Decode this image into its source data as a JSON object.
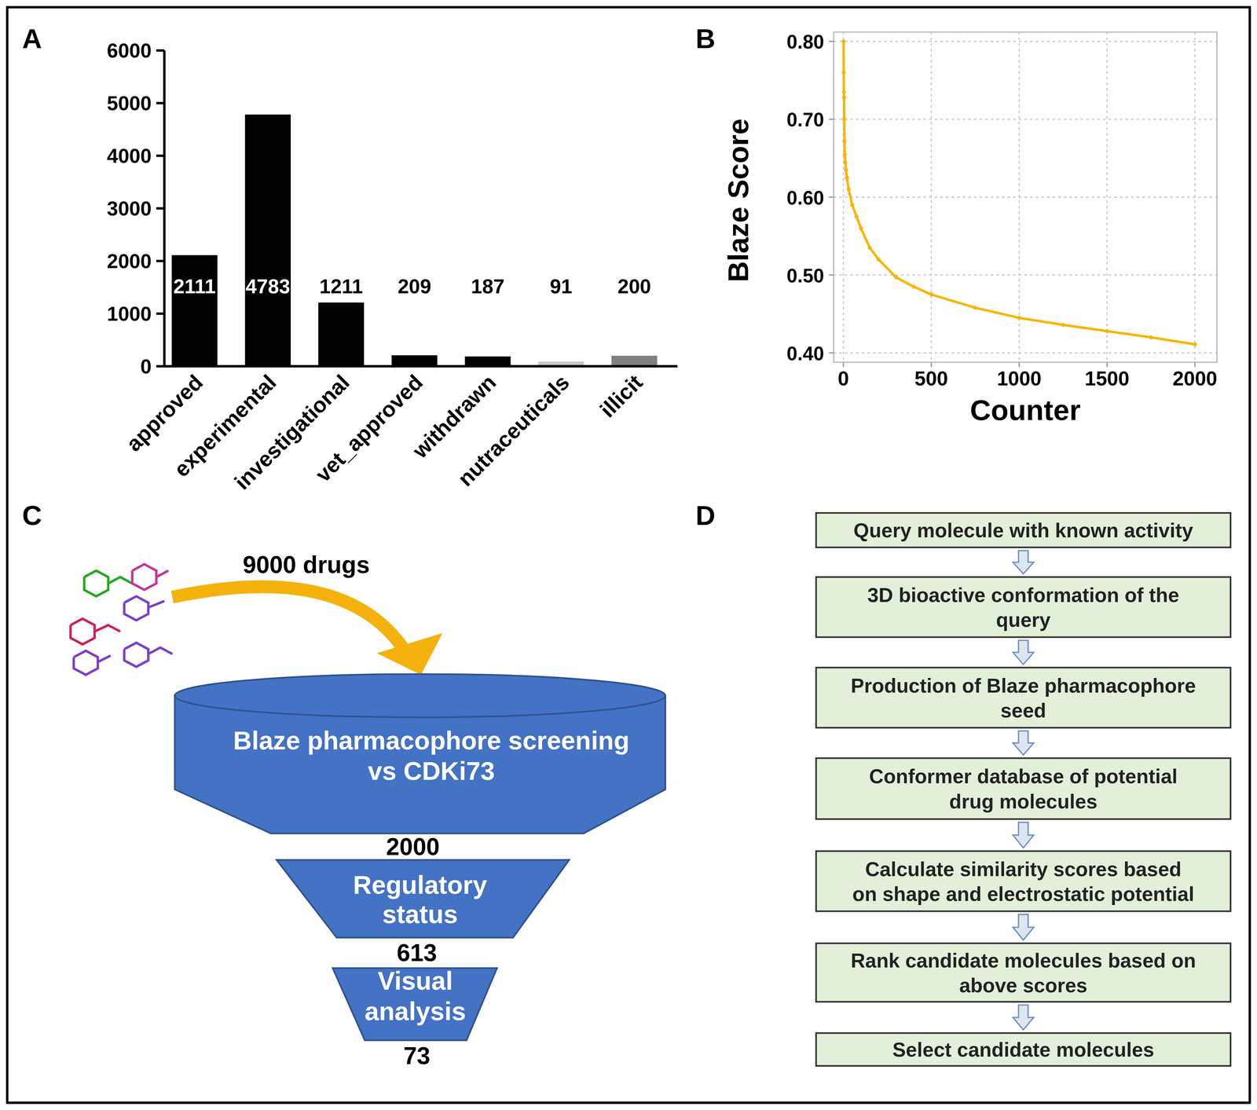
{
  "chart_data": [
    {
      "type": "bar",
      "categories": [
        "approved",
        "experimental",
        "investigational",
        "vet_approved",
        "withdrawn",
        "nutraceuticals",
        "illicit"
      ],
      "values": [
        2111,
        4783,
        1211,
        209,
        187,
        91,
        200
      ],
      "colors": [
        "#000000",
        "#000000",
        "#000000",
        "#000000",
        "#000000",
        "#c8c8c8",
        "#808080"
      ],
      "ylim": [
        0,
        6000
      ],
      "yticks": [
        0,
        1000,
        2000,
        3000,
        4000,
        5000,
        6000
      ],
      "data_labels": true
    },
    {
      "type": "line",
      "x_label": "Counter",
      "y_label": "Blaze Score",
      "x": [
        1,
        2,
        3,
        4,
        5,
        6,
        8,
        10,
        15,
        20,
        30,
        50,
        75,
        100,
        150,
        200,
        300,
        400,
        500,
        750,
        1000,
        1250,
        1500,
        1750,
        2000
      ],
      "values": [
        0.8,
        0.76,
        0.735,
        0.728,
        0.7,
        0.672,
        0.655,
        0.645,
        0.635,
        0.625,
        0.61,
        0.59,
        0.575,
        0.56,
        0.535,
        0.52,
        0.497,
        0.485,
        0.475,
        0.458,
        0.445,
        0.436,
        0.428,
        0.42,
        0.411
      ],
      "color": "#f7b500",
      "marker": "circle",
      "xlim": [
        -55,
        2125
      ],
      "ylim": [
        0.388,
        0.812
      ],
      "xticks": [
        0,
        500,
        1000,
        1500,
        2000
      ],
      "yticks": [
        {
          "value": 0.4,
          "label": "0.40"
        },
        {
          "value": 0.5,
          "label": "0.50"
        },
        {
          "value": 0.6,
          "label": "0.60"
        },
        {
          "value": 0.7,
          "label": "0.70"
        },
        {
          "value": 0.8,
          "label": "0.80"
        }
      ],
      "grid": true
    }
  ],
  "panels": [
    "A",
    "B",
    "C",
    "D"
  ],
  "funnel": {
    "input": "9000 drugs",
    "stages": [
      {
        "label": [
          "Blaze pharmacophore screening",
          "vs CDKi73"
        ],
        "count": 2000
      },
      {
        "label": [
          "Regulatory",
          "status"
        ],
        "count": 613
      },
      {
        "label": [
          "Visual",
          "analysis"
        ],
        "count": 73
      }
    ]
  },
  "flowchart": {
    "steps": [
      [
        "Query molecule with known activity"
      ],
      [
        "3D bioactive conformation of the",
        "query"
      ],
      [
        "Production of Blaze pharmacophore",
        "seed"
      ],
      [
        "Conformer database of potential",
        "drug molecules"
      ],
      [
        "Calculate similarity scores based",
        "on shape and electrostatic potential"
      ],
      [
        "Rank candidate molecules based on",
        "above scores"
      ],
      [
        "Select candidate molecules"
      ]
    ]
  }
}
